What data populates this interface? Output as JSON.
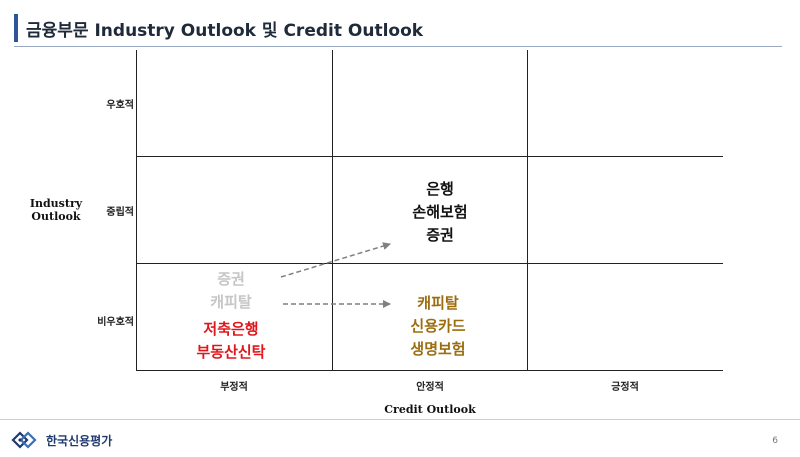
{
  "header": {
    "title": "금융부문 Industry Outlook 및 Credit Outlook"
  },
  "axes": {
    "y_label_line1": "Industry",
    "y_label_line2": "Outlook",
    "y_ticks": [
      "우호적",
      "중립적",
      "비우호적"
    ],
    "x_label": "Credit Outlook",
    "x_ticks": [
      "부정적",
      "안정적",
      "긍정적"
    ]
  },
  "cells": {
    "neutral_stable": [
      "은행",
      "손해보험",
      "증권"
    ],
    "unfavorable_negative_faded": [
      "증권",
      "캐피탈"
    ],
    "unfavorable_negative": [
      "저축은행",
      "부동산신탁"
    ],
    "unfavorable_stable": [
      "캐피탈",
      "신용카드",
      "생명보험"
    ]
  },
  "colors": {
    "accent": "#2e5597",
    "faded": "#c6c6c6",
    "negative": "#e0161b",
    "stable_unfavorable": "#9c6d0f",
    "neutral": "#111111",
    "arrow": "#808080"
  },
  "footer": {
    "company": "한국신용평가",
    "page": "6"
  }
}
